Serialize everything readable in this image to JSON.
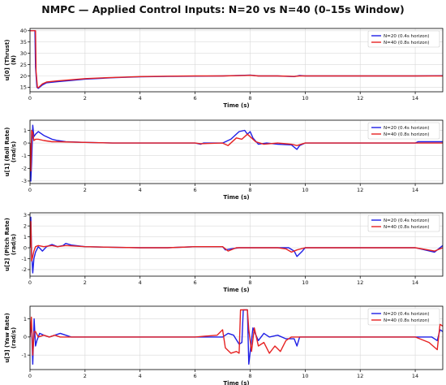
{
  "figure": {
    "title": "NMPC — Applied Control Inputs: N=20 vs N=40 (0–15s Window)"
  },
  "colors": {
    "n20": "#1f1fe6",
    "n40": "#e62222",
    "grid": "#d9d9d9",
    "axis": "#000000"
  },
  "legend": {
    "n20": "N=20 (0.4s horizon)",
    "n40": "N=40 (0.8s horizon)"
  },
  "chart_data": [
    {
      "type": "line",
      "ylabel_line1": "u[0] (Thrust)",
      "ylabel_line2": "(N)",
      "xlabel": "Time (s)",
      "xlim": [
        0,
        15
      ],
      "ylim": [
        13,
        41
      ],
      "xticks": [
        0,
        2,
        4,
        6,
        8,
        10,
        12,
        14
      ],
      "yticks": [
        15,
        20,
        25,
        30,
        35,
        40
      ],
      "grid": true,
      "legend_position": "top-right",
      "series": [
        {
          "name": "N=20 (0.4s horizon)",
          "color": "#1f1fe6",
          "x": [
            0,
            0.18,
            0.2,
            0.25,
            0.3,
            0.45,
            0.6,
            1.0,
            1.5,
            2,
            3,
            4,
            5,
            6,
            7,
            7.8,
            8.0,
            8.3,
            9,
            9.6,
            9.8,
            10,
            11,
            12,
            13,
            14,
            15
          ],
          "y": [
            40,
            40,
            24,
            15,
            14.5,
            16,
            17,
            17.5,
            18,
            18.6,
            19.2,
            19.6,
            19.8,
            19.9,
            20,
            20.3,
            20.4,
            20,
            20,
            19.7,
            20.2,
            20,
            20,
            20,
            20,
            20,
            20.1
          ]
        },
        {
          "name": "N=40 (0.8s horizon)",
          "color": "#e62222",
          "x": [
            0,
            0.2,
            0.22,
            0.27,
            0.32,
            0.45,
            0.6,
            1.0,
            1.5,
            2,
            3,
            4,
            5,
            6,
            7,
            7.8,
            8.0,
            8.3,
            9,
            9.6,
            9.8,
            10,
            11,
            12,
            13,
            14,
            15
          ],
          "y": [
            40,
            40,
            22,
            14.8,
            15,
            16.5,
            17.3,
            17.8,
            18.3,
            18.8,
            19.3,
            19.7,
            19.9,
            20,
            20,
            20.2,
            20.3,
            20,
            20,
            19.8,
            20,
            20,
            20,
            20,
            20,
            20,
            20
          ]
        }
      ]
    },
    {
      "type": "line",
      "ylabel_line1": "u[1] (Roll Rate)",
      "ylabel_line2": "(rad/s)",
      "xlabel": "Time (s)",
      "xlim": [
        0,
        15
      ],
      "ylim": [
        -3.2,
        1.8
      ],
      "xticks": [
        0,
        2,
        4,
        6,
        8,
        10,
        12,
        14
      ],
      "yticks": [
        -3,
        -2,
        -1,
        0,
        1
      ],
      "grid": true,
      "legend_position": "top-right",
      "series": [
        {
          "name": "N=20 (0.4s horizon)",
          "color": "#1f1fe6",
          "x": [
            0,
            0.03,
            0.06,
            0.1,
            0.14,
            0.2,
            0.3,
            0.5,
            0.8,
            1.0,
            1.3,
            2,
            3,
            4,
            5,
            6,
            6.2,
            6.3,
            7,
            7.3,
            7.6,
            7.8,
            7.9,
            8.0,
            8.1,
            8.3,
            8.6,
            9,
            9.5,
            9.7,
            9.8,
            10,
            11,
            12,
            13,
            14,
            14.1,
            15
          ],
          "y": [
            0,
            -3.0,
            -1.5,
            1.4,
            0.5,
            0.7,
            0.9,
            0.6,
            0.3,
            0.2,
            0.1,
            0.05,
            0,
            0,
            0,
            0,
            -0.1,
            0,
            0,
            0.3,
            0.9,
            1.0,
            0.7,
            0.9,
            0.4,
            -0.1,
            0,
            -0.1,
            -0.15,
            -0.5,
            -0.2,
            0,
            0,
            0,
            0,
            0,
            0.1,
            0.1
          ]
        },
        {
          "name": "N=40 (0.8s horizon)",
          "color": "#e62222",
          "x": [
            0,
            0.03,
            0.06,
            0.1,
            0.14,
            0.2,
            0.3,
            0.5,
            0.8,
            1.0,
            2,
            3,
            4,
            5,
            6,
            6.2,
            7,
            7.2,
            7.5,
            7.7,
            7.9,
            8.0,
            8.2,
            8.5,
            9,
            9.5,
            9.7,
            10,
            11,
            12,
            13,
            14,
            15
          ],
          "y": [
            0,
            -2.2,
            1.0,
            0.8,
            0.2,
            0.3,
            0.3,
            0.2,
            0.1,
            0.1,
            0.05,
            0,
            0,
            0,
            0,
            -0.05,
            0,
            -0.2,
            0.4,
            0.3,
            0.7,
            0.5,
            0.1,
            -0.1,
            0,
            -0.1,
            -0.2,
            0,
            0,
            0,
            0,
            0,
            0
          ]
        }
      ]
    },
    {
      "type": "line",
      "ylabel_line1": "u[2] (Pitch Rate)",
      "ylabel_line2": "(rad/s)",
      "xlabel": "Time (s)",
      "xlim": [
        0,
        15
      ],
      "ylim": [
        -2.6,
        3.2
      ],
      "xticks": [
        0,
        2,
        4,
        6,
        8,
        10,
        12,
        14
      ],
      "yticks": [
        -2,
        -1,
        0,
        1,
        2,
        3
      ],
      "grid": true,
      "legend_position": "top-right",
      "series": [
        {
          "name": "N=20 (0.4s horizon)",
          "color": "#1f1fe6",
          "x": [
            0,
            0.03,
            0.06,
            0.1,
            0.14,
            0.2,
            0.3,
            0.45,
            0.6,
            0.8,
            1.0,
            1.2,
            1.3,
            1.5,
            2,
            3,
            4,
            5,
            6,
            7,
            7.1,
            7.3,
            7.6,
            8,
            9,
            9.4,
            9.6,
            9.7,
            9.9,
            10,
            11,
            12,
            13,
            14,
            14.7,
            15
          ],
          "y": [
            0,
            2.8,
            -0.5,
            -2.3,
            -1.0,
            -0.4,
            0.1,
            -0.3,
            0.1,
            0.3,
            0.1,
            0.2,
            0.4,
            0.25,
            0.1,
            0.05,
            0,
            0,
            0.1,
            0.1,
            -0.2,
            -0.1,
            0,
            0,
            0,
            0,
            -0.3,
            -0.8,
            -0.3,
            0,
            0,
            0,
            0,
            0,
            -0.4,
            0.2
          ]
        },
        {
          "name": "N=40 (0.8s horizon)",
          "color": "#e62222",
          "x": [
            0,
            0.03,
            0.06,
            0.1,
            0.14,
            0.2,
            0.3,
            0.5,
            0.8,
            1.0,
            1.3,
            2,
            3,
            4,
            5,
            6,
            7,
            7.2,
            7.5,
            8,
            9,
            9.3,
            9.5,
            9.7,
            10,
            11,
            12,
            13,
            14,
            14.7,
            15
          ],
          "y": [
            0,
            2.4,
            -1.2,
            -0.8,
            -0.3,
            0.1,
            0.2,
            0.1,
            0.2,
            0.1,
            0.2,
            0.1,
            0.05,
            0,
            0,
            0.1,
            0.1,
            -0.3,
            0,
            0,
            0,
            -0.1,
            -0.4,
            -0.2,
            0,
            0,
            0,
            0,
            0,
            -0.3,
            0
          ]
        }
      ]
    },
    {
      "type": "line",
      "ylabel_line1": "u[3] (Yaw Rate)",
      "ylabel_line2": "(rad/s)",
      "xlabel": "Time (s)",
      "xlim": [
        0,
        15
      ],
      "ylim": [
        -1.8,
        1.7
      ],
      "xticks": [
        0,
        2,
        4,
        6,
        8,
        10,
        12,
        14
      ],
      "yticks": [
        -1,
        0,
        1
      ],
      "grid": true,
      "legend_position": "top-right",
      "series": [
        {
          "name": "N=20 (0.4s horizon)",
          "color": "#1f1fe6",
          "x": [
            0,
            0.05,
            0.1,
            0.15,
            0.2,
            0.25,
            0.35,
            0.5,
            0.7,
            0.9,
            1.1,
            1.3,
            1.5,
            2,
            3,
            4,
            5,
            6,
            7,
            7.2,
            7.4,
            7.6,
            7.7,
            7.75,
            7.9,
            7.95,
            8.1,
            8.15,
            8.3,
            8.5,
            8.7,
            9,
            9.3,
            9.6,
            9.7,
            9.8,
            10,
            11,
            12,
            13,
            14,
            14.6,
            14.8,
            14.9,
            15
          ],
          "y": [
            0,
            0.9,
            -1.5,
            1.0,
            -0.5,
            -0.2,
            0.2,
            0.1,
            0.0,
            0.1,
            0.2,
            0.1,
            0.0,
            0,
            0,
            0,
            0,
            0,
            0,
            0.2,
            0.1,
            -0.4,
            -0.3,
            1.5,
            1.5,
            -1.5,
            0.5,
            0.3,
            -0.2,
            0.2,
            0.0,
            0.1,
            -0.1,
            -0.1,
            -0.5,
            0,
            0,
            0,
            0,
            0,
            0,
            0,
            -0.2,
            0.4,
            0.3
          ]
        },
        {
          "name": "N=40 (0.8s horizon)",
          "color": "#e62222",
          "x": [
            0,
            0.05,
            0.1,
            0.15,
            0.2,
            0.3,
            0.5,
            0.7,
            0.9,
            1.1,
            1.3,
            2,
            3,
            4,
            5,
            6,
            6.8,
            7.0,
            7.1,
            7.3,
            7.5,
            7.6,
            7.65,
            7.9,
            7.95,
            8.05,
            8.15,
            8.3,
            8.5,
            8.7,
            8.9,
            9.1,
            9.3,
            9.5,
            10,
            11,
            12,
            13,
            14,
            14.5,
            14.8,
            14.9,
            15
          ],
          "y": [
            0,
            1.1,
            -1.0,
            0.3,
            0.3,
            0.0,
            0.1,
            0.0,
            0.1,
            0.0,
            0.0,
            0,
            0,
            0,
            0,
            0,
            0.1,
            0.4,
            -0.6,
            -0.9,
            -0.8,
            -0.9,
            1.5,
            1.5,
            0.4,
            -0.8,
            0.5,
            -0.5,
            -0.3,
            -0.9,
            -0.5,
            -0.8,
            -0.2,
            0,
            0,
            0,
            0,
            0,
            0,
            -0.3,
            -0.7,
            0.7,
            0.6
          ]
        }
      ]
    }
  ]
}
